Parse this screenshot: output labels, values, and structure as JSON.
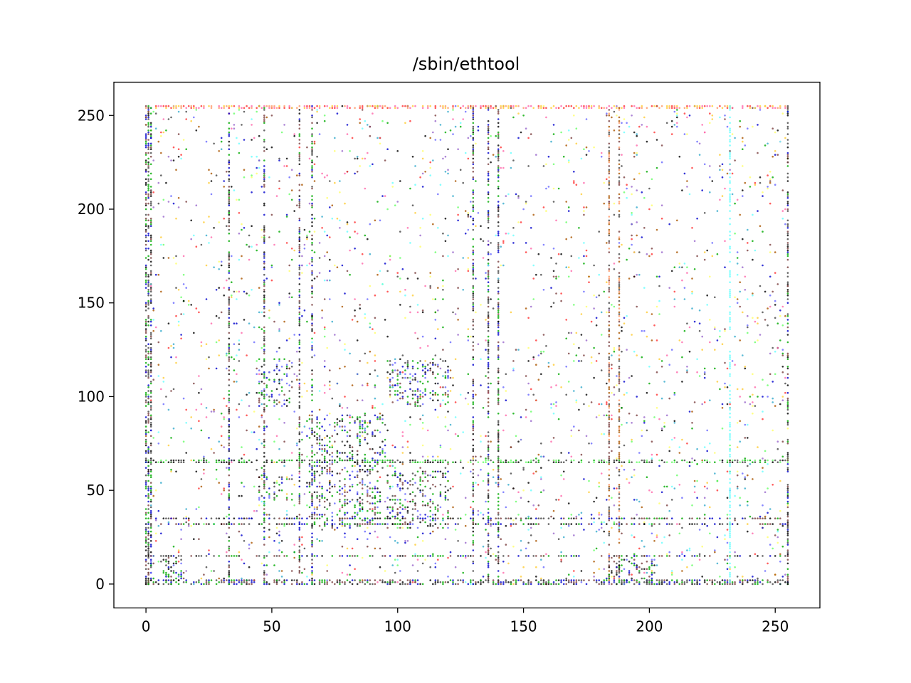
{
  "chart_data": {
    "type": "scatter",
    "title": "/sbin/ethtool",
    "xlabel": "",
    "ylabel": "",
    "xlim": [
      -12.75,
      267.75
    ],
    "ylim": [
      -12.75,
      267.75
    ],
    "xticks": [
      0,
      50,
      100,
      150,
      200,
      250
    ],
    "yticks": [
      0,
      50,
      100,
      150,
      200,
      250
    ],
    "xtick_labels": [
      "0",
      "50",
      "100",
      "150",
      "200",
      "250"
    ],
    "ytick_labels": [
      "0",
      "50",
      "100",
      "150",
      "200",
      "250"
    ],
    "grid": false,
    "legend": "none",
    "marker_colors": [
      "#000000",
      "#444444",
      "#7b3f3f",
      "#0000cc",
      "#6666ff",
      "#9966cc",
      "#ff66aa",
      "#ff3333",
      "#ffcc33",
      "#ffff66",
      "#66ff66",
      "#00aa00",
      "#66ffff",
      "#33aacc",
      "#aa5500"
    ],
    "dense_lines": {
      "horizontal_y": [
        0,
        1,
        2,
        66,
        65,
        255,
        254,
        35,
        32,
        15
      ],
      "vertical_x": [
        0,
        1,
        2,
        33,
        61,
        130,
        136,
        140,
        184,
        188,
        232,
        255,
        47,
        66
      ]
    },
    "clusters": [
      {
        "x": [
          65,
          95
        ],
        "y": [
          60,
          90
        ]
      },
      {
        "x": [
          97,
          120
        ],
        "y": [
          95,
          120
        ]
      },
      {
        "x": [
          45,
          58
        ],
        "y": [
          45,
          58
        ]
      },
      {
        "x": [
          65,
          93
        ],
        "y": [
          30,
          60
        ]
      },
      {
        "x": [
          96,
          120
        ],
        "y": [
          30,
          60
        ]
      },
      {
        "x": [
          0,
          15
        ],
        "y": [
          0,
          15
        ]
      },
      {
        "x": [
          184,
          202
        ],
        "y": [
          0,
          15
        ]
      },
      {
        "x": [
          45,
          58
        ],
        "y": [
          95,
          120
        ]
      }
    ],
    "sparse_point_count": 2600
  }
}
